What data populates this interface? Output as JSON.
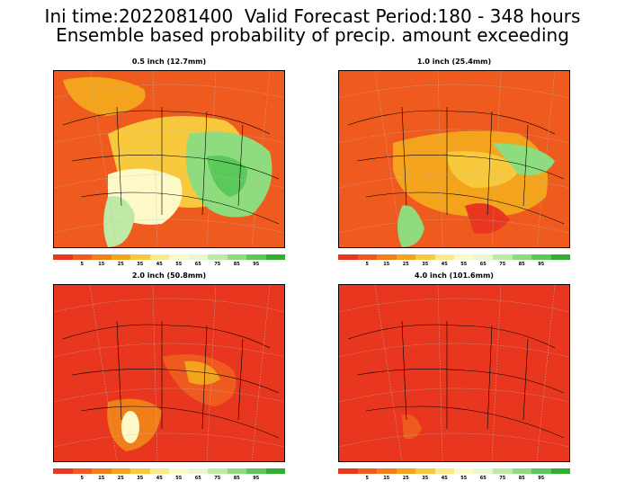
{
  "header": {
    "line1": "Ini time:2022081400  Valid Forecast Period:180 - 348 hours",
    "line2": "Ensemble based probability of precip. amount exceeding"
  },
  "panels": [
    {
      "title": "0.5 inch (12.7mm)",
      "palette_bias": "mixed"
    },
    {
      "title": "1.0 inch (25.4mm)",
      "palette_bias": "orange"
    },
    {
      "title": "2.0 inch (50.8mm)",
      "palette_bias": "red"
    },
    {
      "title": "4.0 inch (101.6mm)",
      "palette_bias": "red"
    }
  ],
  "colorbar": {
    "colors": [
      "#e8371e",
      "#ef5a1e",
      "#f07f1a",
      "#f4a31c",
      "#f8c93c",
      "#fbe98a",
      "#fdf9c8",
      "#e8f7d0",
      "#bfeaa6",
      "#8edc7e",
      "#5bc95a",
      "#2fae2f"
    ],
    "labels": [
      "5",
      "15",
      "25",
      "35",
      "45",
      "55",
      "65",
      "75",
      "85",
      "95"
    ]
  }
}
